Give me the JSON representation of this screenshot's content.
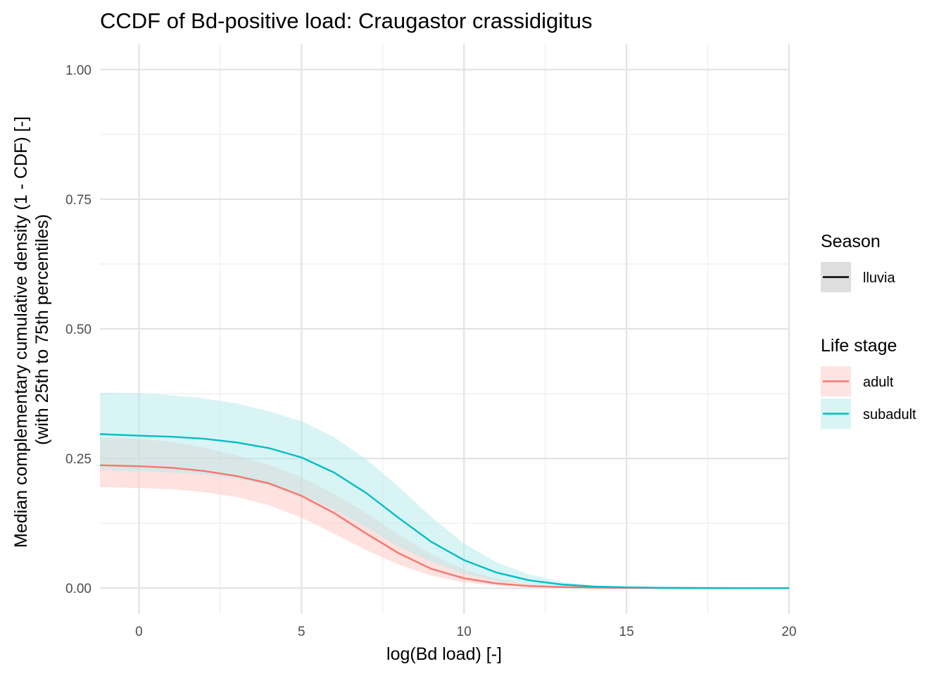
{
  "chart_data": {
    "type": "line",
    "title": "CCDF of Bd-positive load: Craugastor crassidigitus",
    "xlabel": "log(Bd load) [-]",
    "ylabel": [
      "Median complementary cumulative density (1 - CDF) [-]",
      "(with 25th to 75th percentiles)"
    ],
    "xlim": [
      -1.2,
      20
    ],
    "ylim": [
      -0.05,
      1.05
    ],
    "x_ticks": [
      0,
      5,
      10,
      15,
      20
    ],
    "x_tick_labels": [
      "0",
      "5",
      "10",
      "15",
      "20"
    ],
    "y_ticks": [
      0,
      0.25,
      0.5,
      0.75,
      1
    ],
    "y_tick_labels": [
      "0.00",
      "0.25",
      "0.50",
      "0.75",
      "1.00"
    ],
    "grid": true,
    "legend_placement": "right",
    "legends": [
      {
        "title": "Season",
        "entries": [
          {
            "label": "lluvia",
            "color": "#000000",
            "fill": "#dedede"
          }
        ]
      },
      {
        "title": "Life stage",
        "entries": [
          {
            "label": "adult",
            "color": "#F8766D",
            "fill": "#fde4e2"
          },
          {
            "label": "subadult",
            "color": "#00BFC4",
            "fill": "#d9f4f5"
          }
        ]
      }
    ],
    "x": [
      -1.2,
      0,
      1,
      2,
      3,
      4,
      5,
      6,
      7,
      8,
      9,
      10,
      11,
      12,
      13,
      14,
      15,
      16,
      17,
      18,
      19,
      20
    ],
    "series": [
      {
        "name": "adult",
        "color": "#F8766D",
        "median": [
          0.237,
          0.235,
          0.232,
          0.226,
          0.216,
          0.202,
          0.178,
          0.145,
          0.105,
          0.067,
          0.037,
          0.019,
          0.009,
          0.004,
          0.002,
          0.001,
          0.0004,
          0.0002,
          0.0001,
          0,
          0,
          0
        ],
        "lower": [
          0.195,
          0.193,
          0.191,
          0.185,
          0.176,
          0.16,
          0.136,
          0.105,
          0.073,
          0.045,
          0.024,
          0.011,
          0.005,
          0.002,
          0.001,
          0.0005,
          0.0002,
          0.0001,
          0,
          0,
          0,
          0
        ],
        "upper": [
          0.29,
          0.288,
          0.282,
          0.271,
          0.256,
          0.238,
          0.214,
          0.182,
          0.144,
          0.103,
          0.065,
          0.036,
          0.018,
          0.008,
          0.004,
          0.002,
          0.001,
          0.0005,
          0.0002,
          0.0001,
          0,
          0
        ]
      },
      {
        "name": "subadult",
        "color": "#00BFC4",
        "median": [
          0.297,
          0.294,
          0.292,
          0.288,
          0.281,
          0.27,
          0.252,
          0.223,
          0.183,
          0.135,
          0.089,
          0.054,
          0.03,
          0.015,
          0.007,
          0.003,
          0.0015,
          0.0007,
          0.0003,
          0.0001,
          0,
          0
        ],
        "lower": [
          0.228,
          0.226,
          0.223,
          0.219,
          0.211,
          0.199,
          0.18,
          0.152,
          0.117,
          0.08,
          0.05,
          0.028,
          0.014,
          0.007,
          0.003,
          0.0013,
          0.0005,
          0.0002,
          0.0001,
          0,
          0,
          0
        ],
        "upper": [
          0.377,
          0.376,
          0.372,
          0.366,
          0.356,
          0.341,
          0.322,
          0.291,
          0.248,
          0.195,
          0.137,
          0.086,
          0.05,
          0.026,
          0.012,
          0.005,
          0.002,
          0.001,
          0.0004,
          0.0001,
          0,
          0
        ]
      }
    ]
  }
}
